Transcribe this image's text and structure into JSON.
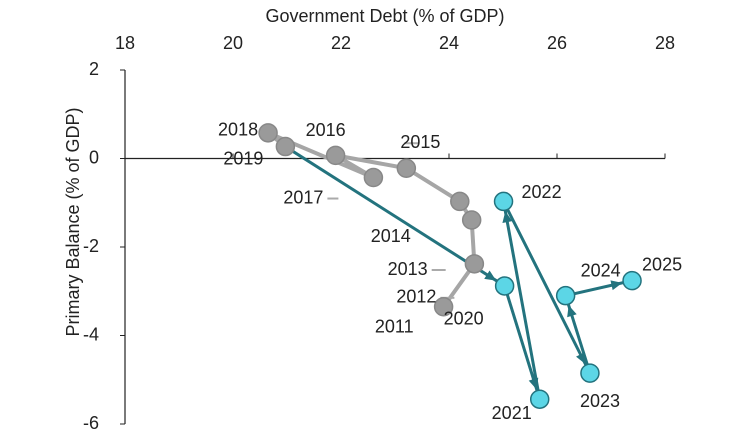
{
  "chart_data": {
    "type": "connected-scatter",
    "x_label": "Government Debt (% of GDP)",
    "y_label": "Primary Balance (% of GDP)",
    "xlim": [
      18,
      28
    ],
    "xticks": [
      18,
      20,
      22,
      24,
      26,
      28
    ],
    "ylim": [
      -6,
      2
    ],
    "yticks": [
      -6,
      -4,
      -2,
      0,
      2
    ],
    "series": [
      {
        "color": "#a6a6a6",
        "marker_color": "#9a9a9a",
        "labels": [
          "2011",
          "2012",
          "2013",
          "2014",
          "2015",
          "2016",
          "2017",
          "2018",
          "2019"
        ],
        "x": [
          23.9,
          24.47,
          24.42,
          24.2,
          23.21,
          21.9,
          22.6,
          20.65,
          20.97
        ],
        "values": [
          -3.35,
          -2.38,
          -1.39,
          -0.97,
          -0.22,
          0.07,
          -0.43,
          0.58,
          0.27
        ]
      },
      {
        "color": "#23737e",
        "marker_color": "#5cd6e6",
        "labels": [
          "2020",
          "2021",
          "2022",
          "2023",
          "2024",
          "2025"
        ],
        "x": [
          25.03,
          25.68,
          25.01,
          26.61,
          26.16,
          27.39
        ],
        "values": [
          -2.88,
          -5.44,
          -0.97,
          -4.85,
          -3.1,
          -2.76
        ]
      }
    ]
  }
}
